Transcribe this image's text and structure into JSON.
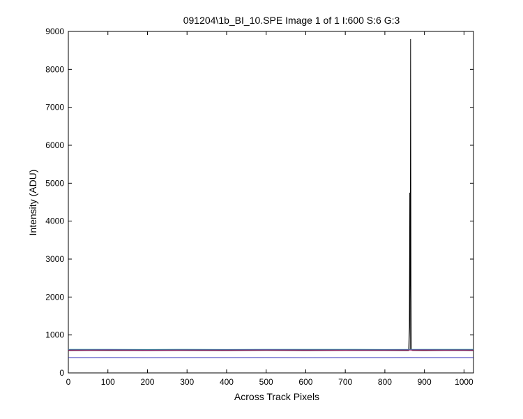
{
  "chart_data": {
    "type": "line",
    "title": "091204\\1b_BI_10.SPE  Image 1 of 1  I:600  S:6  G:3",
    "xlabel": "Across Track Pixels",
    "ylabel": "Intensity (ADU)",
    "xlim": [
      0,
      1024
    ],
    "ylim": [
      0,
      9000
    ],
    "xticks": [
      0,
      100,
      200,
      300,
      400,
      500,
      600,
      700,
      800,
      900,
      1000
    ],
    "yticks": [
      0,
      1000,
      2000,
      3000,
      4000,
      5000,
      6000,
      7000,
      8000,
      9000
    ],
    "grid": false,
    "legend": "none",
    "series": [
      {
        "color": "#000000",
        "points": [
          [
            0,
            590
          ],
          [
            100,
            592
          ],
          [
            200,
            588
          ],
          [
            300,
            591
          ],
          [
            400,
            589
          ],
          [
            500,
            593
          ],
          [
            600,
            590
          ],
          [
            700,
            592
          ],
          [
            800,
            591
          ],
          [
            860,
            590
          ],
          [
            862,
            1200
          ],
          [
            863,
            4750
          ],
          [
            864,
            600
          ],
          [
            865,
            8800
          ],
          [
            866,
            2300
          ],
          [
            867,
            600
          ],
          [
            870,
            591
          ],
          [
            900,
            590
          ],
          [
            1000,
            592
          ],
          [
            1024,
            590
          ]
        ]
      },
      {
        "color": "#1f1fb4",
        "points": [
          [
            0,
            400
          ],
          [
            100,
            402
          ],
          [
            200,
            399
          ],
          [
            300,
            401
          ],
          [
            400,
            400
          ],
          [
            500,
            402
          ],
          [
            600,
            399
          ],
          [
            700,
            401
          ],
          [
            800,
            400
          ],
          [
            865,
            402
          ],
          [
            900,
            400
          ],
          [
            1000,
            401
          ],
          [
            1024,
            400
          ]
        ]
      },
      {
        "color": "#1a9e3a",
        "points": [
          [
            0,
            610
          ],
          [
            100,
            612
          ],
          [
            200,
            608
          ],
          [
            300,
            611
          ],
          [
            400,
            609
          ],
          [
            500,
            612
          ],
          [
            600,
            610
          ],
          [
            700,
            611
          ],
          [
            800,
            609
          ],
          [
            900,
            612
          ],
          [
            1000,
            610
          ],
          [
            1024,
            611
          ]
        ]
      },
      {
        "color": "#c02020",
        "points": [
          [
            0,
            600
          ],
          [
            100,
            603
          ],
          [
            200,
            598
          ],
          [
            300,
            602
          ],
          [
            400,
            600
          ],
          [
            500,
            603
          ],
          [
            600,
            601
          ],
          [
            700,
            599
          ],
          [
            800,
            602
          ],
          [
            900,
            600
          ],
          [
            1000,
            603
          ],
          [
            1024,
            601
          ]
        ]
      },
      {
        "color": "#20a0a0",
        "points": [
          [
            0,
            620
          ],
          [
            100,
            622
          ],
          [
            200,
            618
          ],
          [
            300,
            621
          ],
          [
            400,
            619
          ],
          [
            500,
            622
          ],
          [
            600,
            620
          ],
          [
            700,
            621
          ],
          [
            800,
            619
          ],
          [
            900,
            622
          ],
          [
            1000,
            620
          ],
          [
            1024,
            621
          ]
        ]
      },
      {
        "color": "#a020a0",
        "points": [
          [
            0,
            605
          ],
          [
            100,
            607
          ],
          [
            200,
            603
          ],
          [
            300,
            606
          ],
          [
            400,
            604
          ],
          [
            500,
            607
          ],
          [
            600,
            605
          ],
          [
            700,
            606
          ],
          [
            800,
            604
          ],
          [
            900,
            607
          ],
          [
            1000,
            605
          ],
          [
            1024,
            606
          ]
        ]
      }
    ]
  }
}
